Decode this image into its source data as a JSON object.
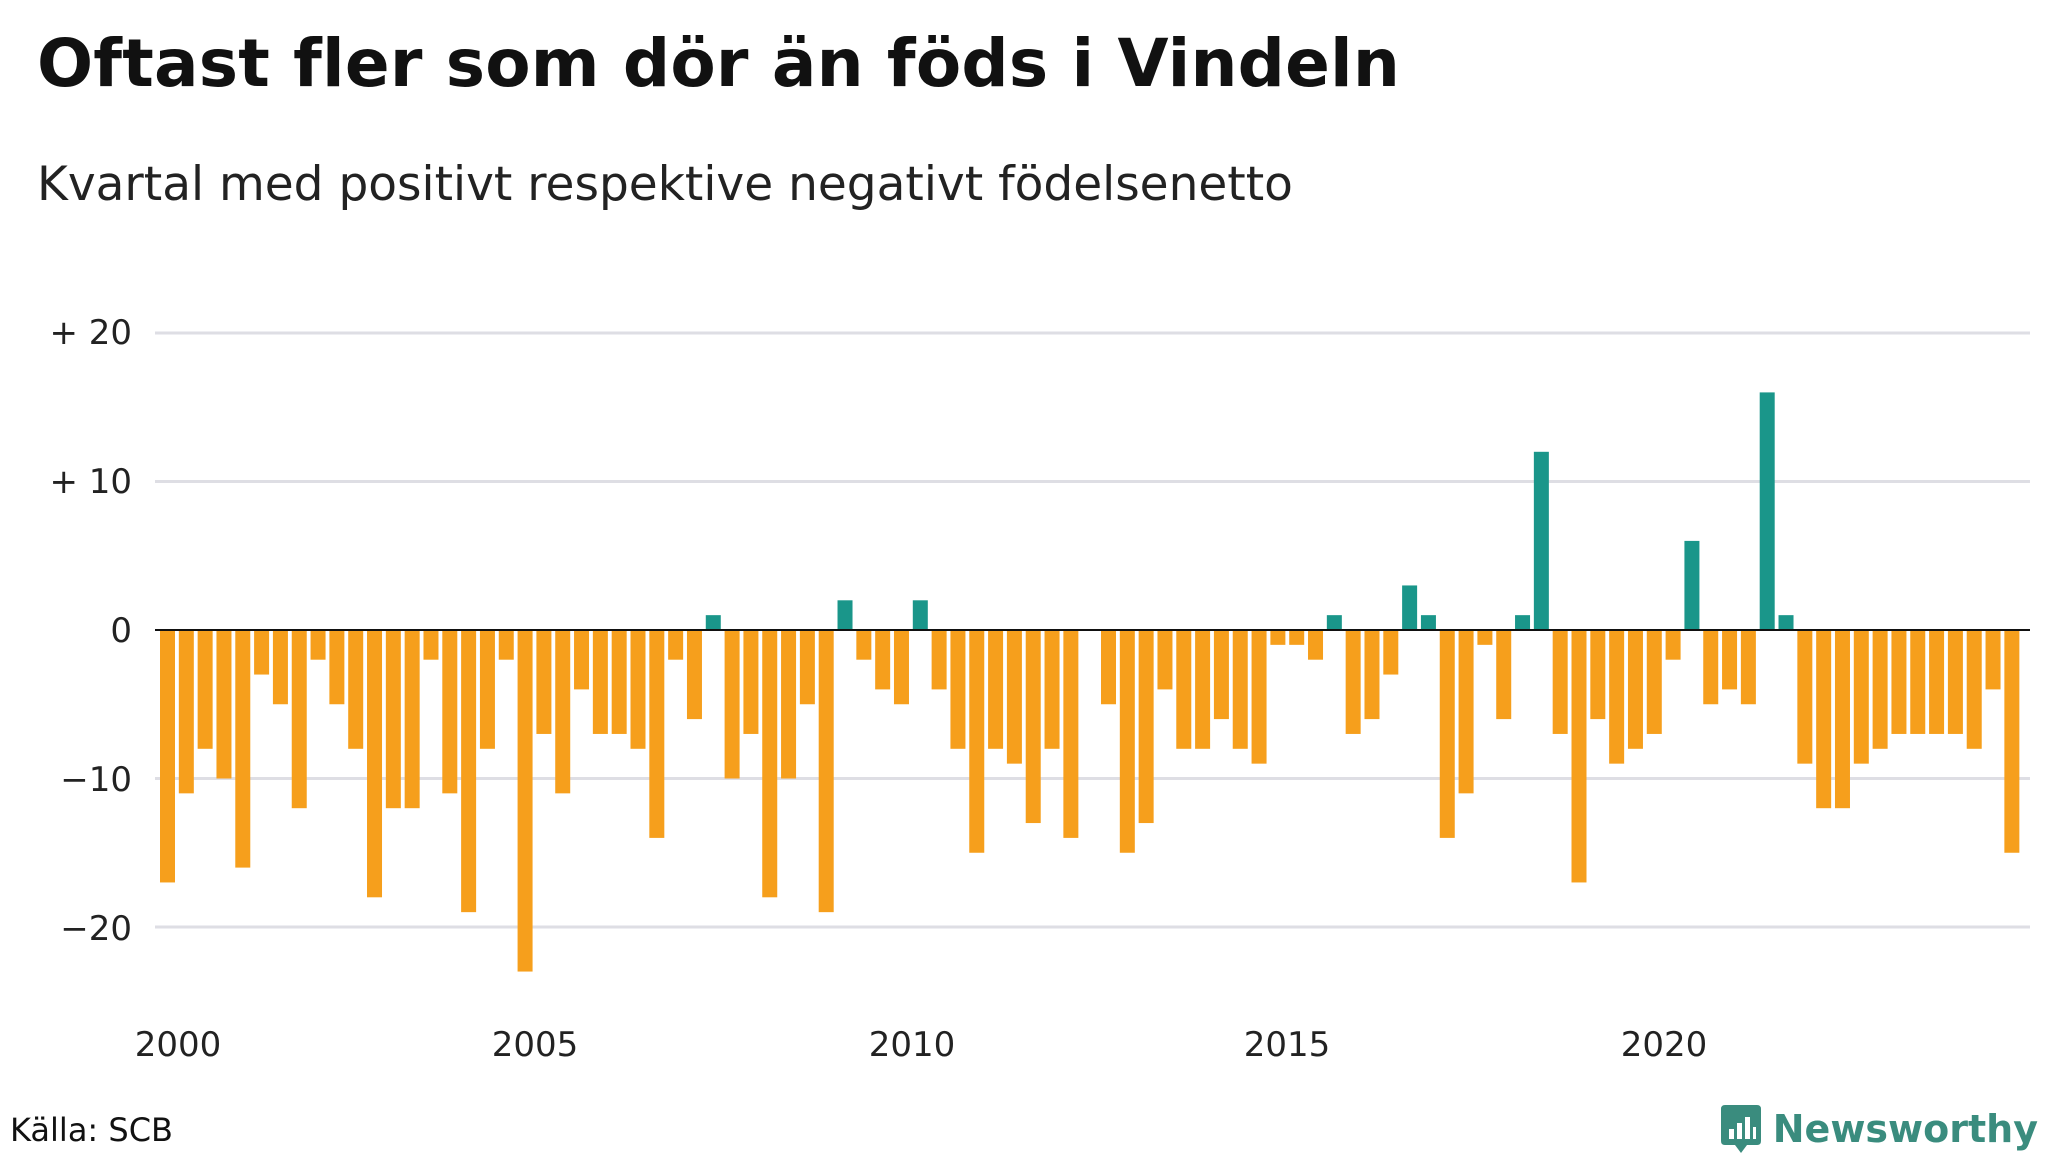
{
  "header": {
    "title": "Oftast fler som dör än föds i Vindeln",
    "subtitle": "Kvartal med positivt respektive negativt födelsenetto"
  },
  "footer": {
    "source": "Källa: SCB",
    "brand": "Newsworthy",
    "brand_color": "#3a8c7e"
  },
  "chart_data": {
    "type": "bar",
    "x_unit": "quarter",
    "start": "2000 Q1",
    "values": [
      -17,
      -11,
      -8,
      -10,
      -16,
      -3,
      -5,
      -12,
      -2,
      -5,
      -8,
      -18,
      -12,
      -12,
      -2,
      -11,
      -19,
      -8,
      -2,
      -23,
      -7,
      -11,
      -4,
      -7,
      -7,
      -8,
      -14,
      -2,
      -6,
      1,
      -10,
      -7,
      -18,
      -10,
      -5,
      -19,
      2,
      -2,
      -4,
      -5,
      2,
      -4,
      -8,
      -15,
      -8,
      -9,
      -13,
      -8,
      -14,
      0,
      -5,
      -15,
      -13,
      -4,
      -8,
      -8,
      -6,
      -8,
      -9,
      -1,
      -1,
      -2,
      1,
      -7,
      -6,
      -3,
      3,
      1,
      -14,
      -11,
      -1,
      -6,
      1,
      12,
      -7,
      -17,
      -6,
      -9,
      -8,
      -7,
      -2,
      6,
      -5,
      -4,
      -5,
      16,
      1,
      -9,
      -12,
      -12,
      -9,
      -8,
      -7,
      -7,
      -7,
      -7,
      -8,
      -4,
      -15
    ],
    "xticks": [
      "2000",
      "2005",
      "2010",
      "2015",
      "2020"
    ],
    "yticks": [
      "+ 20",
      "+ 10",
      "0",
      "−10",
      "−20"
    ],
    "ylim": [
      -25,
      20
    ],
    "colors": {
      "positive": "#1a968a",
      "negative": "#f69f1c",
      "grid": "#dedee4",
      "zero_line": "#111111"
    },
    "grid": true
  }
}
